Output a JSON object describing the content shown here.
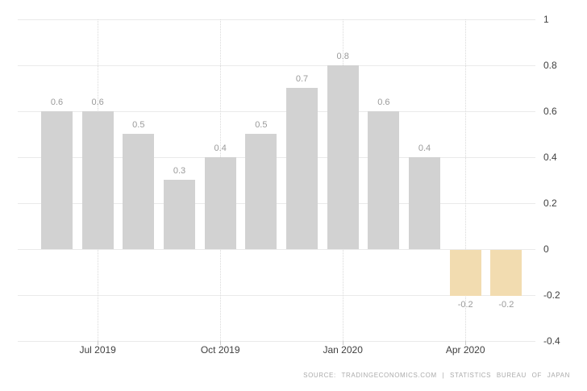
{
  "chart_data": {
    "type": "bar",
    "title": "",
    "values": [
      0.6,
      0.6,
      0.5,
      0.3,
      0.4,
      0.5,
      0.7,
      0.8,
      0.6,
      0.4,
      -0.2,
      -0.2
    ],
    "bar_value_labels": [
      "0.6",
      "0.6",
      "0.5",
      "0.3",
      "0.4",
      "0.5",
      "0.7",
      "0.8",
      "0.6",
      "0.4",
      "-0.2",
      "-0.2"
    ],
    "x_tick_labels": [
      "Jul 2019",
      "Oct 2019",
      "Jan 2020",
      "Apr 2020"
    ],
    "x_tick_bar_index": [
      1,
      4,
      7,
      10
    ],
    "y_ticks": [
      1,
      0.8,
      0.6,
      0.4,
      0.2,
      0,
      -0.2,
      -0.4
    ],
    "y_tick_labels": [
      "1",
      "0.8",
      "0.6",
      "0.4",
      "0.2",
      "0",
      "-0.2",
      "-0.4"
    ],
    "ylim": [
      -0.4,
      1
    ],
    "grid": "horizontal solid lines at every 0.2; vertical dotted lines at labeled month ticks; drawn behind bars",
    "legend": "none",
    "colors": {
      "positive_bar": "#d2d2d2",
      "negative_bar": "#f2dcb0",
      "bar_value_label": "#9a9a9a",
      "axis_label": "#404040",
      "gridline": "#eaeaea",
      "vertical_gridline": "#d9d9d9",
      "background": "#ffffff",
      "source_text": "#ababab"
    }
  },
  "footer": {
    "source_line": "SOURCE: TRADINGECONOMICS.COM | STATISTICS BUREAU OF JAPAN"
  }
}
